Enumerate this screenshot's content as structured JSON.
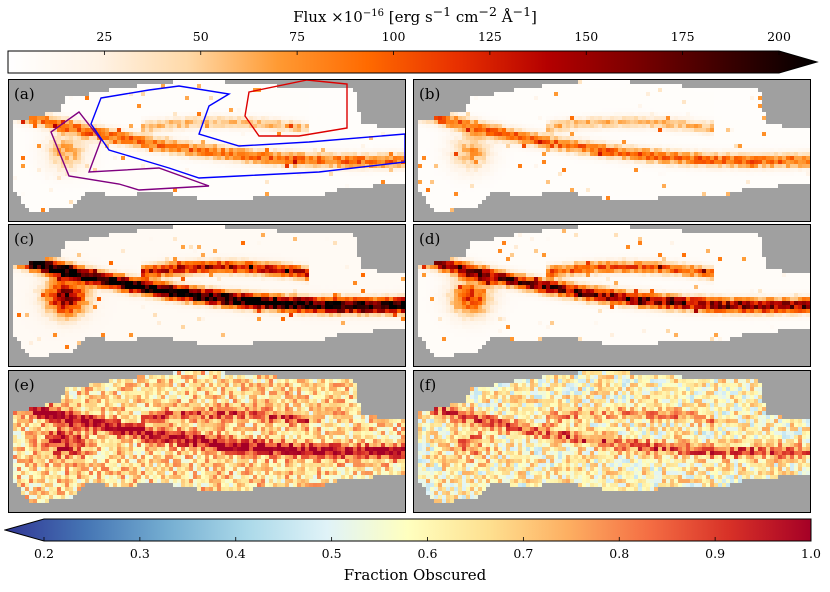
{
  "colorbar_top": {
    "title": "Flux ×10",
    "title_exp": "−16",
    "title_units_html": " [erg s<sup>−1</sup> cm<sup>−2</sup> Å<sup>−1</sup>]",
    "ticks": [
      "25",
      "50",
      "75",
      "100",
      "125",
      "150",
      "175",
      "200"
    ],
    "range": [
      0,
      200
    ],
    "extend": "max",
    "colormap": "gist_heat_r",
    "stops": [
      "#ffffff",
      "#fff3e6",
      "#ffd9a8",
      "#ff9a33",
      "#ff6a00",
      "#e83000",
      "#b40000",
      "#7a0000",
      "#3a0000",
      "#000000"
    ]
  },
  "colorbar_bottom": {
    "label": "Fraction Obscured",
    "ticks": [
      "0.2",
      "0.3",
      "0.4",
      "0.5",
      "0.6",
      "0.7",
      "0.8",
      "0.9",
      "1.0"
    ],
    "range": [
      0.2,
      1.0
    ],
    "extend": "min",
    "colormap": "RdYlBu_r",
    "stops": [
      "#313695",
      "#4575b4",
      "#74add1",
      "#abd9e9",
      "#e0f3f8",
      "#ffffbf",
      "#fee090",
      "#fdae61",
      "#f46d43",
      "#d73027",
      "#a50026"
    ]
  },
  "chart_data": [
    {
      "panel": "(a)",
      "type": "heatmap",
      "quantity": "Flux",
      "regions_drawn": [
        "purple",
        "blue",
        "red"
      ],
      "colors": {
        "purple": "#800080",
        "blue": "#0000ff",
        "red": "#dd0000"
      }
    },
    {
      "panel": "(b)",
      "type": "heatmap",
      "quantity": "Flux"
    },
    {
      "panel": "(c)",
      "type": "heatmap",
      "quantity": "Flux"
    },
    {
      "panel": "(d)",
      "type": "heatmap",
      "quantity": "Flux"
    },
    {
      "panel": "(e)",
      "type": "heatmap",
      "quantity": "Fraction Obscured"
    },
    {
      "panel": "(f)",
      "type": "heatmap",
      "quantity": "Fraction Obscured"
    }
  ],
  "colors": {
    "background": "#a0a0a0",
    "frame": "#000000"
  }
}
